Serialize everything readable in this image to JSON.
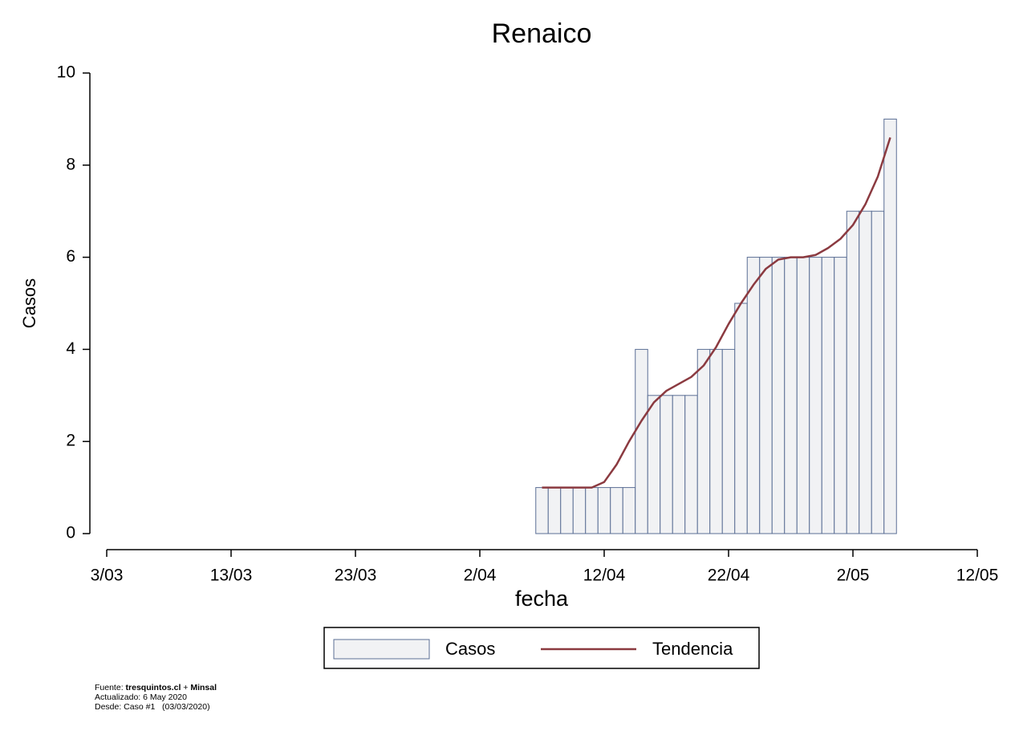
{
  "chart_data": {
    "type": "bar",
    "title": "Renaico",
    "x_label": "fecha",
    "y_label": "Casos",
    "x": [
      "7/04",
      "8/04",
      "9/04",
      "10/04",
      "11/04",
      "12/04",
      "13/04",
      "14/04",
      "15/04",
      "16/04",
      "17/04",
      "18/04",
      "19/04",
      "20/04",
      "21/04",
      "22/04",
      "23/04",
      "24/04",
      "25/04",
      "26/04",
      "27/04",
      "28/04",
      "29/04",
      "30/04",
      "1/05",
      "2/05",
      "3/05",
      "4/05",
      "5/05"
    ],
    "series": [
      {
        "name": "Casos",
        "type": "bar",
        "color": "#f1f2f4",
        "edge_color": "#5b6f95",
        "values": [
          1,
          1,
          1,
          1,
          1,
          1,
          1,
          1,
          4,
          3,
          3,
          3,
          3,
          4,
          4,
          4,
          5,
          6,
          6,
          6,
          6,
          6,
          6,
          6,
          6,
          7,
          7,
          7,
          9
        ]
      },
      {
        "name": "Tendencia",
        "type": "line",
        "color": "#8b3a40",
        "values": [
          1,
          1,
          1,
          1,
          1,
          1.12,
          1.5,
          2,
          2.45,
          2.85,
          3.1,
          3.25,
          3.4,
          3.65,
          4.05,
          4.55,
          5,
          5.4,
          5.75,
          5.95,
          6,
          6,
          6.05,
          6.2,
          6.4,
          6.7,
          7.15,
          7.75,
          8.6
        ]
      }
    ],
    "xlim": [
      "3/03",
      "12/05"
    ],
    "xticks": [
      "3/03",
      "13/03",
      "23/03",
      "2/04",
      "12/04",
      "22/04",
      "2/05",
      "12/05"
    ],
    "ylim": [
      0,
      10
    ],
    "yticks": [
      0,
      2,
      4,
      6,
      8,
      10
    ],
    "grid": false,
    "legend": "bottom",
    "footer": {
      "source": [
        "Fuente: ",
        "tresquintos.cl",
        " + ",
        "Minsal"
      ],
      "updated": "Actualizado: 6 May 2020",
      "since": "Desde: Caso #1   (03/03/2020)"
    }
  }
}
